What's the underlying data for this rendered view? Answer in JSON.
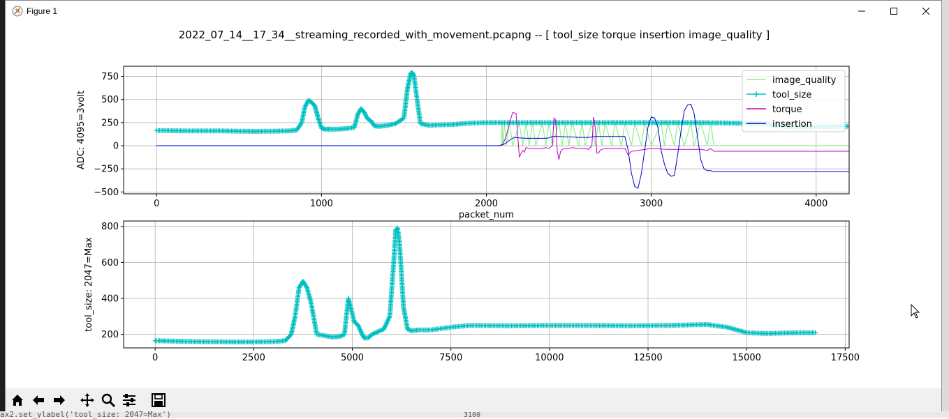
{
  "window": {
    "title": "Figure 1"
  },
  "figure": {
    "suptitle": "2022_07_14__17_34__streaming_recorded_with_movement.pcapng -- [ tool_size   torque   insertion    image_quality ]"
  },
  "toolbar": {
    "items": [
      "home-icon",
      "back-icon",
      "forward-icon",
      "pan-icon",
      "zoom-icon",
      "configure-icon",
      "save-icon"
    ]
  },
  "background": {
    "code_text": "ax2.set_ylabel('tool_size: 2047=Max')",
    "number_text": "3100"
  },
  "colors": {
    "image_quality": "#90ee90",
    "tool_size": "#00bfbf",
    "torque": "#bf00bf",
    "insertion": "#0000cd",
    "grid": "#b0b0b0"
  },
  "chart_data": [
    {
      "type": "line",
      "xlabel": "packet_num",
      "ylabel": "ADC: 4095=3volt",
      "xlim": [
        -200,
        4200
      ],
      "ylim": [
        -520,
        860
      ],
      "xticks": [
        0,
        1000,
        2000,
        3000,
        4000
      ],
      "yticks": [
        -500,
        -250,
        0,
        250,
        500,
        750
      ],
      "grid": true,
      "legend": "top-right",
      "legend_entries": [
        "image_quality",
        "tool_size",
        "torque",
        "insertion"
      ],
      "series": [
        {
          "name": "image_quality",
          "x": [
            0,
            2090,
            2095,
            2100,
            2110,
            2120,
            2140,
            2160,
            2200,
            2220,
            2240,
            2260,
            2280,
            2300,
            2340,
            2360,
            2380,
            2400,
            2440,
            2460,
            2480,
            2500,
            2520,
            2560,
            2580,
            2600,
            2640,
            2660,
            2680,
            2700,
            2720,
            2760,
            2780,
            2820,
            2840,
            2880,
            2900,
            2940,
            2960,
            3000,
            3060,
            3080,
            3100,
            3140,
            3160,
            3200,
            3240,
            3260,
            3300,
            3340,
            3360,
            3380,
            4200
          ],
          "y": [
            0,
            0,
            250,
            0,
            250,
            0,
            250,
            0,
            250,
            0,
            250,
            0,
            250,
            0,
            250,
            0,
            250,
            0,
            250,
            0,
            250,
            0,
            250,
            0,
            250,
            0,
            250,
            0,
            250,
            0,
            250,
            0,
            250,
            0,
            250,
            0,
            250,
            0,
            250,
            0,
            250,
            0,
            250,
            0,
            250,
            0,
            250,
            0,
            250,
            0,
            250,
            0,
            0
          ]
        },
        {
          "name": "tool_size",
          "x": [
            0,
            200,
            400,
            600,
            800,
            850,
            880,
            900,
            920,
            940,
            960,
            980,
            1000,
            1020,
            1050,
            1100,
            1150,
            1200,
            1220,
            1240,
            1260,
            1280,
            1300,
            1320,
            1350,
            1400,
            1450,
            1500,
            1520,
            1540,
            1550,
            1560,
            1580,
            1600,
            1650,
            1700,
            1800,
            1900,
            2000,
            2100,
            2500,
            3000,
            3300,
            3500,
            3700,
            3800,
            3900,
            4000,
            4200
          ],
          "y": [
            165,
            160,
            160,
            155,
            160,
            170,
            250,
            420,
            490,
            470,
            430,
            300,
            190,
            180,
            180,
            180,
            185,
            200,
            340,
            400,
            360,
            290,
            270,
            215,
            210,
            220,
            240,
            300,
            600,
            780,
            790,
            760,
            500,
            240,
            220,
            225,
            230,
            245,
            250,
            250,
            250,
            250,
            250,
            245,
            235,
            210,
            200,
            205,
            210
          ]
        },
        {
          "name": "torque",
          "x": [
            0,
            2080,
            2100,
            2120,
            2140,
            2160,
            2180,
            2200,
            2220,
            2230,
            2240,
            2260,
            2280,
            2300,
            2320,
            2340,
            2360,
            2380,
            2400,
            2410,
            2420,
            2430,
            2440,
            2450,
            2460,
            2480,
            2500,
            2520,
            2560,
            2600,
            2620,
            2640,
            2650,
            2660,
            2670,
            2680,
            2690,
            2700,
            2720,
            2760,
            2800,
            2840,
            2860,
            2880,
            2920,
            3000,
            3100,
            3200,
            3300,
            3340,
            3360,
            3380,
            4200
          ],
          "y": [
            0,
            0,
            20,
            100,
            250,
            360,
            350,
            -120,
            -50,
            -70,
            -20,
            -30,
            -30,
            -30,
            -30,
            -30,
            -20,
            -30,
            0,
            300,
            280,
            -60,
            -150,
            -60,
            -40,
            -30,
            -30,
            -20,
            -30,
            -30,
            -40,
            0,
            310,
            200,
            -80,
            -80,
            -50,
            -40,
            -30,
            -30,
            -30,
            -30,
            -100,
            -60,
            -50,
            -30,
            -40,
            -40,
            -40,
            -50,
            -30,
            -60,
            -60
          ]
        },
        {
          "name": "insertion",
          "x": [
            0,
            2080,
            2100,
            2120,
            2140,
            2160,
            2170,
            2180,
            2200,
            2240,
            2300,
            2360,
            2380,
            2400,
            2420,
            2440,
            2480,
            2520,
            2560,
            2580,
            2600,
            2620,
            2640,
            2660,
            2680,
            2720,
            2760,
            2800,
            2820,
            2840,
            2860,
            2880,
            2900,
            2920,
            2940,
            2960,
            2980,
            3000,
            3020,
            3040,
            3060,
            3080,
            3100,
            3120,
            3140,
            3160,
            3180,
            3200,
            3220,
            3240,
            3260,
            3280,
            3300,
            3320,
            3340,
            3360,
            3380,
            4200
          ],
          "y": [
            0,
            0,
            10,
            30,
            60,
            80,
            90,
            90,
            85,
            80,
            80,
            80,
            85,
            100,
            100,
            100,
            95,
            95,
            90,
            90,
            90,
            90,
            95,
            100,
            100,
            100,
            100,
            100,
            100,
            100,
            -50,
            -300,
            -440,
            -460,
            -300,
            -50,
            200,
            310,
            300,
            200,
            -50,
            -200,
            -300,
            -330,
            -320,
            -100,
            150,
            380,
            440,
            450,
            350,
            100,
            -150,
            -250,
            -270,
            -270,
            -280,
            -280
          ]
        }
      ]
    },
    {
      "type": "scatter",
      "xlabel": "",
      "ylabel": "tool_size: 2047=Max",
      "xlim": [
        -800,
        17600
      ],
      "ylim": [
        125,
        830
      ],
      "xticks": [
        0,
        2500,
        5000,
        7500,
        10000,
        12500,
        15000,
        17500
      ],
      "yticks": [
        200,
        400,
        600,
        800
      ],
      "grid": true,
      "series": [
        {
          "name": "tool_size",
          "x": [
            0,
            1000,
            2000,
            2500,
            3000,
            3300,
            3450,
            3550,
            3650,
            3750,
            3850,
            3950,
            4100,
            4500,
            4700,
            4800,
            4850,
            4900,
            4950,
            5050,
            5150,
            5250,
            5300,
            5400,
            5500,
            5800,
            5950,
            6050,
            6100,
            6150,
            6200,
            6300,
            6400,
            6500,
            6700,
            7000,
            7500,
            8000,
            9000,
            10000,
            11000,
            12000,
            13000,
            14000,
            14500,
            15000,
            15500,
            16000,
            16780
          ],
          "y": [
            165,
            160,
            158,
            158,
            160,
            165,
            200,
            300,
            460,
            495,
            460,
            380,
            200,
            185,
            190,
            200,
            300,
            400,
            360,
            270,
            250,
            200,
            180,
            180,
            200,
            230,
            300,
            600,
            780,
            790,
            700,
            350,
            230,
            220,
            225,
            225,
            240,
            250,
            248,
            250,
            250,
            248,
            250,
            255,
            240,
            210,
            205,
            208,
            210
          ]
        }
      ]
    }
  ]
}
